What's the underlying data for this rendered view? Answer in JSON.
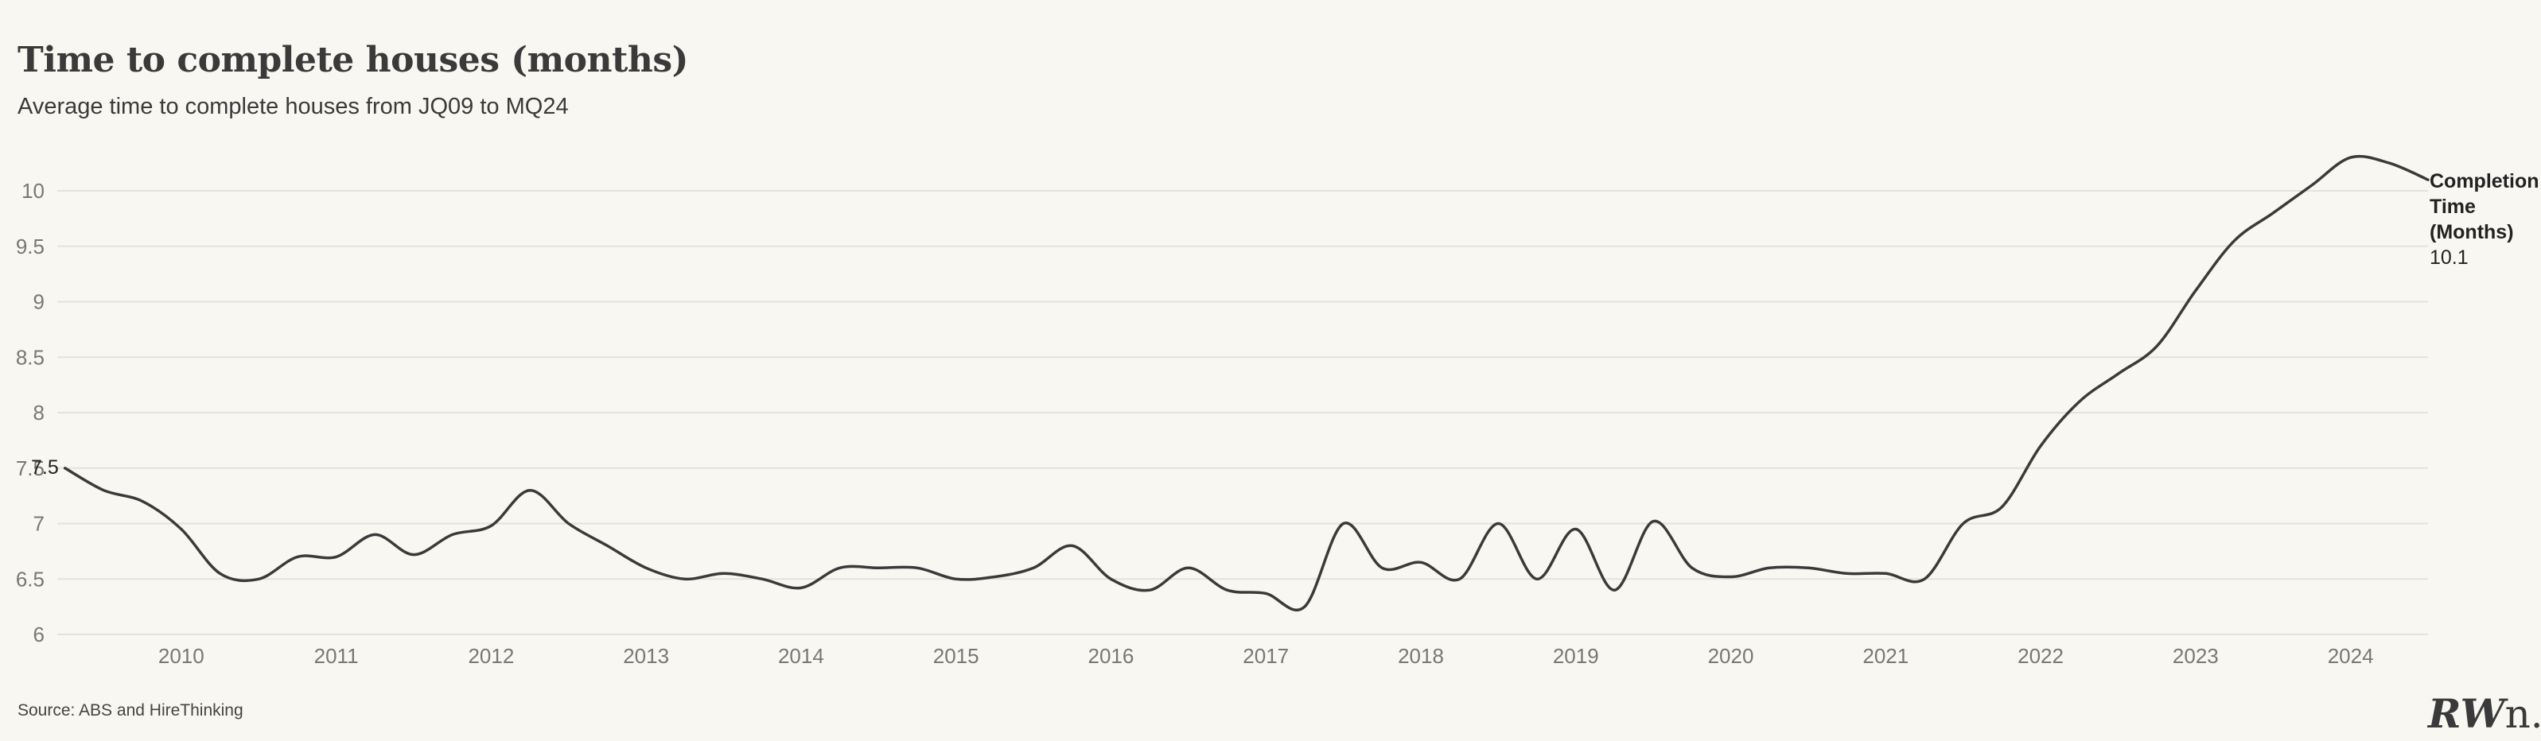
{
  "title": "Time to complete houses (months)",
  "subtitle": "Average time to complete houses from JQ09 to MQ24",
  "source": "Source: ABS and HireThinking",
  "logo_text": "RW",
  "logo_text_suffix": "n.",
  "colors": {
    "line": "#3a3a3a",
    "grid": "#e4e2dc",
    "background": "#f9f7f2",
    "tick": "#777777"
  },
  "chart_data": {
    "type": "line",
    "title": "Time to complete houses (months)",
    "subtitle": "Average time to complete houses from JQ09 to MQ24",
    "xlabel": "",
    "ylabel": "",
    "xlim": [
      2009.2,
      2024.5
    ],
    "ylim": [
      6,
      10
    ],
    "x_ticks": [
      2010,
      2011,
      2012,
      2013,
      2014,
      2015,
      2016,
      2017,
      2018,
      2019,
      2020,
      2021,
      2022,
      2023,
      2024
    ],
    "y_ticks": [
      6,
      6.5,
      7,
      7.5,
      8,
      8.5,
      9,
      9.5,
      10
    ],
    "grid": true,
    "series": [
      {
        "name": "Completion Time (Months)",
        "end_label": [
          "Completion",
          "Time",
          "(Months)"
        ],
        "end_value": "10.1",
        "start_value": "7.5",
        "x": [
          2009.25,
          2009.5,
          2009.75,
          2010.0,
          2010.25,
          2010.5,
          2010.75,
          2011.0,
          2011.25,
          2011.5,
          2011.75,
          2012.0,
          2012.25,
          2012.5,
          2012.75,
          2013.0,
          2013.25,
          2013.5,
          2013.75,
          2014.0,
          2014.25,
          2014.5,
          2014.75,
          2015.0,
          2015.25,
          2015.5,
          2015.75,
          2016.0,
          2016.25,
          2016.5,
          2016.75,
          2017.0,
          2017.25,
          2017.5,
          2017.75,
          2018.0,
          2018.25,
          2018.5,
          2018.75,
          2019.0,
          2019.25,
          2019.5,
          2019.75,
          2020.0,
          2020.25,
          2020.5,
          2020.75,
          2021.0,
          2021.25,
          2021.5,
          2021.75,
          2022.0,
          2022.25,
          2022.5,
          2022.75,
          2023.0,
          2023.25,
          2023.5,
          2023.75,
          2024.0,
          2024.25,
          2024.5
        ],
        "values": [
          7.5,
          7.3,
          7.2,
          6.95,
          6.55,
          6.5,
          6.7,
          6.7,
          6.9,
          6.72,
          6.9,
          6.98,
          7.3,
          7.0,
          6.8,
          6.6,
          6.5,
          6.55,
          6.5,
          6.42,
          6.6,
          6.6,
          6.6,
          6.5,
          6.52,
          6.6,
          6.8,
          6.5,
          6.4,
          6.6,
          6.4,
          6.37,
          6.25,
          7.0,
          6.6,
          6.65,
          6.5,
          7.0,
          6.5,
          6.95,
          6.4,
          7.02,
          6.6,
          6.52,
          6.6,
          6.6,
          6.55,
          6.55,
          6.5,
          7.0,
          7.15,
          7.7,
          8.1,
          8.35,
          8.6,
          9.1,
          9.55,
          9.8,
          10.05,
          10.3,
          10.25,
          10.1
        ]
      }
    ]
  }
}
